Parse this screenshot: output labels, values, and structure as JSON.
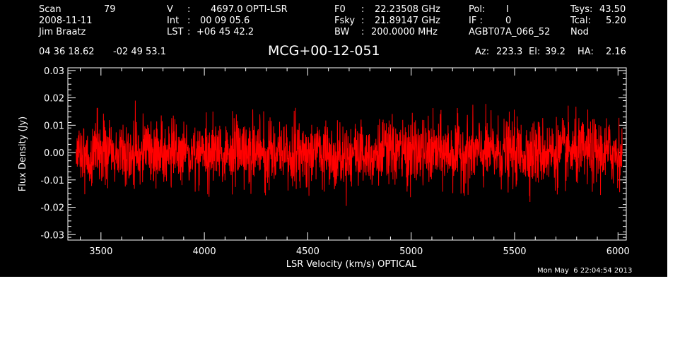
{
  "header": {
    "scan_label": "Scan",
    "scan_number": "79",
    "date": "2008-11-11",
    "observer": "Jim Braatz",
    "v_label": "V",
    "v_sep": ":",
    "v_value": "4697.0 OPTI-LSR",
    "int_label": "Int",
    "int_sep": ":",
    "int_value": "00 09 05.6",
    "lst_label": "LST",
    "lst_sep": ":",
    "lst_value": "+06 45 42.2",
    "f0_label": "F0",
    "f0_sep": ":",
    "f0_value": "22.23508 GHz",
    "fsky_label": "Fsky",
    "fsky_sep": ":",
    "fsky_value": "21.89147 GHz",
    "bw_label": "BW",
    "bw_sep": ":",
    "bw_value": "200.0000 MHz",
    "pol_label": "Pol:",
    "pol_value": "I",
    "if_label": "IF :",
    "if_value": "0",
    "project": "AGBT07A_066_52",
    "tsys_label": "Tsys:",
    "tsys_value": "43.50",
    "tcal_label": "Tcal:",
    "tcal_value": "5.20",
    "procedure": "Nod",
    "ra": "04 36 18.62",
    "dec": "-02 49 53.1",
    "az_label": "Az:",
    "az_value": "223.3",
    "el_label": "El:",
    "el_value": "39.2",
    "ha_label": "HA:",
    "ha_value": "2.16"
  },
  "timestamp": "Mon May  6 22:04:54 2013",
  "colors": {
    "background": "#000000",
    "foreground": "#ffffff",
    "trace": "#ff0000"
  },
  "chart_data": {
    "type": "line",
    "title": "MCG+00-12-051",
    "xlabel": "LSR Velocity (km/s) OPTICAL",
    "ylabel": "Flux Density (Jy)",
    "xlim": [
      3340,
      6040
    ],
    "ylim": [
      -0.032,
      0.031
    ],
    "x_ticks": [
      3500,
      4000,
      4500,
      5000,
      5500,
      6000
    ],
    "x_tick_labels": [
      "3500",
      "4000",
      "4500",
      "5000",
      "5500",
      "6000"
    ],
    "y_ticks": [
      -0.03,
      -0.02,
      -0.01,
      0.0,
      0.01,
      0.02,
      0.03
    ],
    "y_tick_labels": [
      "-0.03",
      "-0.02",
      "-0.01",
      "0.00",
      "0.01",
      "0.02",
      "0.03"
    ],
    "grid": false,
    "series": [
      {
        "x_start": 3380,
        "x_end": 6020,
        "n_points": 2400,
        "mean": 0.0,
        "rms": 0.006,
        "min": -0.022,
        "max": 0.019
      }
    ]
  }
}
